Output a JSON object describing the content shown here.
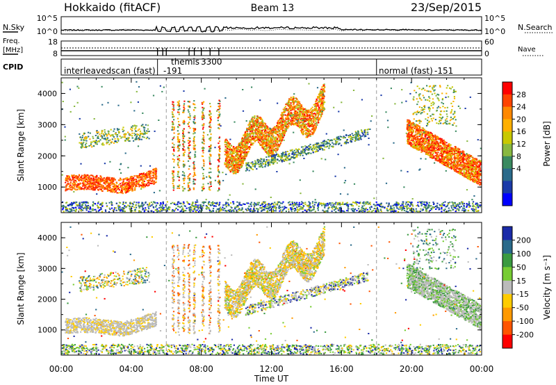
{
  "header": {
    "station": "Hokkaido (fitACF)",
    "beam": "Beam 13",
    "date": "23/Sep/2015"
  },
  "noise_panel": {
    "left_label": "N.Sky",
    "right_label": "N.Search",
    "left_ticks": [
      "10^5",
      "10^0"
    ],
    "right_ticks": [
      "10^5",
      "10^0"
    ]
  },
  "freq_panel": {
    "left_label_line1": "Freq.",
    "left_label_line2": "[MHz]",
    "left_ticks": [
      "18",
      "8"
    ],
    "right_label": "Nave",
    "right_ticks": [
      "60",
      "0"
    ]
  },
  "cpid_panel": {
    "label": "CPID",
    "modes": [
      {
        "name": "interleavedscan (fast)",
        "id": "-191"
      },
      {
        "name": "themis",
        "id": "3300"
      },
      {
        "name": "normal (fast)",
        "id": "-151"
      }
    ]
  },
  "power_panel": {
    "ylabel": "Slant Range [km]",
    "yticks": [
      "4000",
      "3000",
      "2000",
      "1000"
    ],
    "colorbar_label": "Power [dB]",
    "colorbar_ticks": [
      "28",
      "24",
      "20",
      "16",
      "12",
      "8",
      "4"
    ],
    "colors": [
      "#ff0000",
      "#ff4400",
      "#ff8800",
      "#ffb000",
      "#c8c800",
      "#88b840",
      "#3a8a60",
      "#2a6a8a",
      "#1a3aa8",
      "#0000ff"
    ]
  },
  "velocity_panel": {
    "ylabel": "Slant Range [km]",
    "yticks": [
      "4000",
      "3000",
      "2000",
      "1000"
    ],
    "colorbar_label": "Velocity [m s⁻¹]",
    "colorbar_ticks": [
      "200",
      "100",
      "50",
      "15",
      "-15",
      "-50",
      "-100",
      "-200"
    ],
    "colors": [
      "#1a2aa8",
      "#2a6a8a",
      "#3a9a40",
      "#77cc33",
      "#bbbbbb",
      "#ffcc00",
      "#ff9900",
      "#ff5500",
      "#ff0000"
    ]
  },
  "x_axis": {
    "label": "Time UT",
    "ticks": [
      "00:00",
      "04:00",
      "08:00",
      "12:00",
      "16:00",
      "20:00",
      "00:00"
    ]
  },
  "chart_data": {
    "type": "heatmap",
    "x": {
      "label": "Time UT",
      "range_hours": [
        0,
        24
      ]
    },
    "y": {
      "label": "Slant Range [km]",
      "range_km": [
        180,
        4500
      ]
    },
    "mode_change_times_hours": [
      5.5,
      6.0,
      18.0
    ],
    "power_db_range": [
      0,
      30
    ],
    "velocity_range": [
      -250,
      250
    ],
    "scatter_regions": [
      {
        "name": "",
        "t_start": 0.2,
        "t_end": 5.4,
        "range_km": [
          900,
          1400
        ],
        "power_db": 26,
        "velocity": 0
      },
      {
        "name": "",
        "t_start": 9.3,
        "t_end": 15.0,
        "range_km": [
          1700,
          3900
        ],
        "power_db": 22,
        "velocity": -20
      },
      {
        "name": "",
        "t_start": 19.8,
        "t_end": 24.0,
        "range_km": [
          900,
          2600
        ],
        "power_db": 26,
        "velocity": 5
      }
    ]
  }
}
